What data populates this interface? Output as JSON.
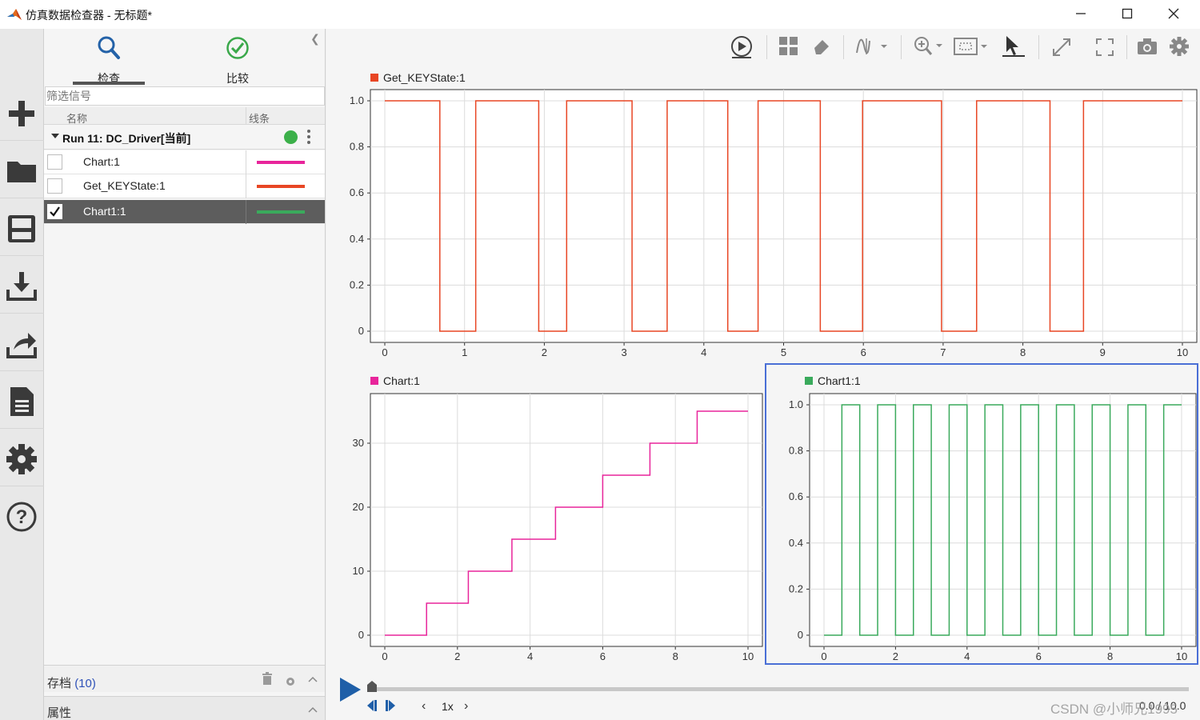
{
  "window": {
    "title": "仿真数据检查器 - 无标题*",
    "controls": [
      "minimize-icon",
      "maximize-icon",
      "close-icon"
    ]
  },
  "rail": {
    "items": [
      "plus-icon",
      "folder-icon",
      "save-icon",
      "import-icon",
      "export-icon",
      "report-icon",
      "gear-icon",
      "help-icon"
    ]
  },
  "panel": {
    "tabs": [
      {
        "label": "检查",
        "icon": "search-icon",
        "active": true
      },
      {
        "label": "比较",
        "icon": "check-circle-icon",
        "active": false
      }
    ],
    "filter_placeholder": "筛选信号",
    "columns": {
      "name": "名称",
      "line": "线条"
    },
    "run": {
      "label": "Run 11: DC_Driver[当前]",
      "status_color": "#3cb04a"
    },
    "signals": [
      {
        "name": "Chart:1",
        "checked": false,
        "color": "#e8259b"
      },
      {
        "name": "Get_KEYState:1",
        "checked": false,
        "color": "#e84624"
      },
      {
        "name": "Chart1:1",
        "checked": true,
        "color": "#3aaa5c",
        "selected": true
      }
    ],
    "archive": {
      "label": "存档",
      "count": "(10)"
    },
    "properties": {
      "label": "属性"
    }
  },
  "toolbar": {
    "icons": [
      "replay-icon",
      "layout-grid-icon",
      "eraser-icon",
      "signal-cursor-icon",
      "zoom-in-icon",
      "fit-icon",
      "pointer-icon",
      "expand-icon",
      "fullscreen-icon",
      "camera-icon",
      "gear-icon"
    ]
  },
  "playback": {
    "speed": "1x",
    "time": "0.0 / 10.0",
    "progress": 0.0
  },
  "watermark": "CSDN @小师兄1995",
  "chart_data": [
    {
      "type": "line",
      "title": "",
      "series": [
        {
          "name": "Get_KEYState:1",
          "color": "#e84624",
          "step_edges": [
            0,
            0.69,
            1.14,
            1.93,
            2.28,
            3.1,
            3.54,
            4.3,
            4.68,
            5.46,
            5.99,
            6.98,
            7.42,
            8.34,
            8.76,
            10
          ],
          "step_values": [
            1,
            0,
            1,
            0,
            1,
            0,
            1,
            0,
            1,
            0,
            1,
            0,
            1,
            0,
            1
          ]
        }
      ],
      "xlim": [
        0,
        10
      ],
      "ylim": [
        0,
        1
      ],
      "xticks": [
        "0",
        "1",
        "2",
        "3",
        "4",
        "5",
        "6",
        "7",
        "8",
        "9",
        "10"
      ],
      "yticks": [
        "0",
        "0.2",
        "0.4",
        "0.6",
        "0.8",
        "1.0"
      ],
      "grid": true
    },
    {
      "type": "line",
      "title": "",
      "series": [
        {
          "name": "Chart:1",
          "color": "#e8259b",
          "step_edges": [
            0,
            1.15,
            2.3,
            3.5,
            4.7,
            6,
            7.3,
            8.6,
            10
          ],
          "step_values": [
            0,
            5,
            10,
            15,
            20,
            25,
            30,
            35
          ]
        }
      ],
      "xlim": [
        0,
        10
      ],
      "ylim": [
        0,
        36
      ],
      "xticks": [
        "0",
        "2",
        "4",
        "6",
        "8",
        "10"
      ],
      "yticks": [
        "0",
        "10",
        "20",
        "30"
      ],
      "grid": true
    },
    {
      "type": "line",
      "title": "",
      "series": [
        {
          "name": "Chart1:1",
          "color": "#3aaa5c",
          "step_edges": [
            0,
            0.5,
            1,
            1.5,
            2,
            2.5,
            3,
            3.5,
            4,
            4.5,
            5,
            5.5,
            6,
            6.5,
            7,
            7.5,
            8,
            8.5,
            9,
            9.5,
            10
          ],
          "step_values": [
            0,
            1,
            0,
            1,
            0,
            1,
            0,
            1,
            0,
            1,
            0,
            1,
            0,
            1,
            0,
            1,
            0,
            1,
            0,
            1
          ]
        }
      ],
      "xlim": [
        0,
        10
      ],
      "ylim": [
        0,
        1
      ],
      "xticks": [
        "0",
        "2",
        "4",
        "6",
        "8",
        "10"
      ],
      "yticks": [
        "0",
        "0.2",
        "0.4",
        "0.6",
        "0.8",
        "1.0"
      ],
      "grid": true,
      "selected": true
    }
  ]
}
